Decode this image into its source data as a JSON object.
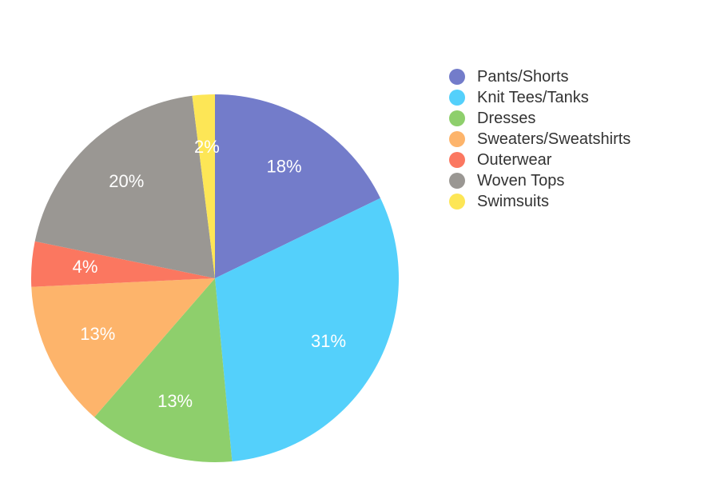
{
  "chart_data": {
    "type": "pie",
    "title": "",
    "legend_position": "right",
    "slices": [
      {
        "label": "Pants/Shorts",
        "value": 18,
        "display": "18%",
        "color": "#737cca"
      },
      {
        "label": "Knit Tees/Tanks",
        "value": 31,
        "display": "31%",
        "color": "#54d0fb"
      },
      {
        "label": "Dresses",
        "value": 13,
        "display": "13%",
        "color": "#8ecf6c"
      },
      {
        "label": "Sweaters/Sweatshirts",
        "value": 13,
        "display": "13%",
        "color": "#fdb46b"
      },
      {
        "label": "Outerwear",
        "value": 4,
        "display": "4%",
        "color": "#fb7760"
      },
      {
        "label": "Woven Tops",
        "value": 20,
        "display": "20%",
        "color": "#9a9793"
      },
      {
        "label": "Swimsuits",
        "value": 2,
        "display": "2%",
        "color": "#fde656"
      }
    ]
  }
}
